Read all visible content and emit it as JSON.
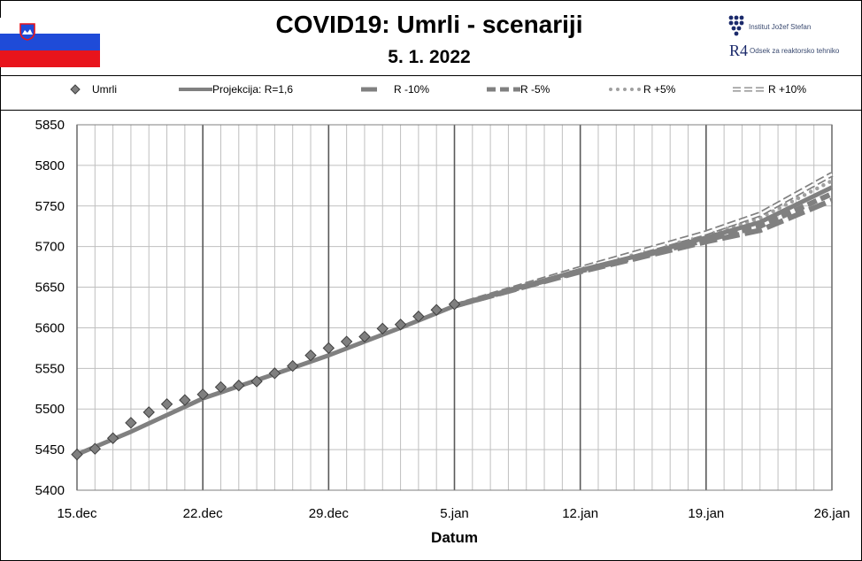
{
  "header": {
    "title": "COVID19: Umrli - scenariji",
    "subtitle": "5. 1. 2022",
    "logo_ijs": "Institut Jožef Stefan",
    "logo_r4_mark": "R4",
    "logo_r4_text": "Odsek za reaktorsko tehniko"
  },
  "legend": [
    {
      "label": "Umrli",
      "style": "marker"
    },
    {
      "label": "Projekcija: R=1,6",
      "style": "solid"
    },
    {
      "label": "R -10%",
      "style": "long-dash"
    },
    {
      "label": "R -5%",
      "style": "dash"
    },
    {
      "label": "R +5%",
      "style": "dot"
    },
    {
      "label": "R +10%",
      "style": "hollow-dash"
    }
  ],
  "colors": {
    "series_gray": "#808080",
    "marker_fill": "#7f7f7f",
    "grid_major": "#595959",
    "grid_minor": "#bfbfbf",
    "flag_blue": "#1f4bd8",
    "flag_red": "#e8141c"
  },
  "chart_data": {
    "type": "line",
    "xlabel": "Datum",
    "ylabel": "",
    "x_ticks": [
      "15.dec",
      "22.dec",
      "29.dec",
      "5.jan",
      "12.jan",
      "19.jan",
      "26.jan"
    ],
    "x_range_days": [
      0,
      42
    ],
    "ylim": [
      5400,
      5850
    ],
    "y_ticks": [
      5400,
      5450,
      5500,
      5550,
      5600,
      5650,
      5700,
      5750,
      5800,
      5850
    ],
    "grid": "daily vertical lines, weekly major lines, horizontal lines every 50",
    "series": [
      {
        "name": "Umrli",
        "style": "marker",
        "points": [
          [
            0,
            5444
          ],
          [
            1,
            5451
          ],
          [
            2,
            5464
          ],
          [
            3,
            5483
          ],
          [
            4,
            5496
          ],
          [
            5,
            5506
          ],
          [
            6,
            5511
          ],
          [
            7,
            5518
          ],
          [
            8,
            5527
          ],
          [
            9,
            5529
          ],
          [
            10,
            5534
          ],
          [
            11,
            5544
          ],
          [
            12,
            5553
          ],
          [
            13,
            5566
          ],
          [
            14,
            5575
          ],
          [
            15,
            5583
          ],
          [
            16,
            5589
          ],
          [
            17,
            5599
          ],
          [
            18,
            5604
          ],
          [
            19,
            5614
          ],
          [
            20,
            5622
          ],
          [
            21,
            5629
          ]
        ]
      },
      {
        "name": "Projekcija: R=1,6",
        "style": "solid",
        "points": [
          [
            0,
            5444
          ],
          [
            3,
            5472
          ],
          [
            7,
            5513
          ],
          [
            11,
            5543
          ],
          [
            14,
            5566
          ],
          [
            18,
            5600
          ],
          [
            21,
            5627
          ],
          [
            25,
            5652
          ],
          [
            28,
            5671
          ],
          [
            32,
            5693
          ],
          [
            35,
            5711
          ],
          [
            38,
            5730
          ],
          [
            42,
            5773
          ]
        ]
      },
      {
        "name": "R -10%",
        "style": "long-dash",
        "points": [
          [
            21,
            5627
          ],
          [
            28,
            5669
          ],
          [
            35,
            5706
          ],
          [
            38,
            5720
          ],
          [
            42,
            5757
          ]
        ]
      },
      {
        "name": "R -5%",
        "style": "dash",
        "points": [
          [
            21,
            5627
          ],
          [
            28,
            5670
          ],
          [
            35,
            5708
          ],
          [
            38,
            5725
          ],
          [
            42,
            5765
          ]
        ]
      },
      {
        "name": "R +5%",
        "style": "dot",
        "points": [
          [
            21,
            5627
          ],
          [
            28,
            5672
          ],
          [
            35,
            5714
          ],
          [
            38,
            5735
          ],
          [
            42,
            5781
          ]
        ]
      },
      {
        "name": "R +10%",
        "style": "hollow-dash",
        "points": [
          [
            21,
            5627
          ],
          [
            28,
            5673
          ],
          [
            35,
            5717
          ],
          [
            38,
            5740
          ],
          [
            42,
            5789
          ]
        ]
      }
    ]
  }
}
